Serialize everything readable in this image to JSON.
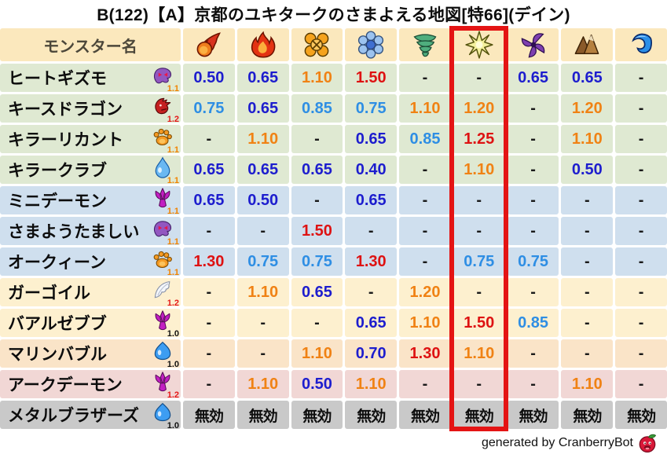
{
  "chart_data": {
    "type": "table",
    "title": "B(122)【A】京都のユキタークのさまよえる地図[特66](デイン)",
    "name_header": "モンスター名",
    "element_columns": [
      "fireball-icon",
      "flame-icon",
      "explosion-icon",
      "snowflake-icon",
      "tornado-icon",
      "spark-icon",
      "pinwheel-icon",
      "mountain-icon",
      "wave-icon"
    ],
    "highlighted_column_index": 5,
    "rows": [
      {
        "name": "ヒートギズモ",
        "icon": "ghost-icon",
        "multiplier": "1.1",
        "band": "green",
        "values": [
          "0.50",
          "0.65",
          "1.10",
          "1.50",
          "-",
          "-",
          "0.65",
          "0.65",
          "-"
        ]
      },
      {
        "name": "キースドラゴン",
        "icon": "dragon-icon",
        "multiplier": "1.2",
        "band": "green",
        "values": [
          "0.75",
          "0.65",
          "0.85",
          "0.75",
          "1.10",
          "1.20",
          "-",
          "1.20",
          "-"
        ]
      },
      {
        "name": "キラーリカント",
        "icon": "paw-icon",
        "multiplier": "1.1",
        "band": "green",
        "values": [
          "-",
          "1.10",
          "-",
          "0.65",
          "0.85",
          "1.25",
          "-",
          "1.10",
          "-"
        ]
      },
      {
        "name": "キラークラブ",
        "icon": "drop-icon",
        "multiplier": "1.1",
        "band": "green",
        "values": [
          "0.65",
          "0.65",
          "0.65",
          "0.40",
          "-",
          "1.10",
          "-",
          "0.50",
          "-"
        ]
      },
      {
        "name": "ミニデーモン",
        "icon": "trident-icon",
        "multiplier": "1.1",
        "band": "blue",
        "values": [
          "0.65",
          "0.50",
          "-",
          "0.65",
          "-",
          "-",
          "-",
          "-",
          "-"
        ]
      },
      {
        "name": "さまようたましい",
        "icon": "ghost-icon",
        "multiplier": "1.1",
        "band": "blue",
        "values": [
          "-",
          "-",
          "1.50",
          "-",
          "-",
          "-",
          "-",
          "-",
          "-"
        ]
      },
      {
        "name": "オークィーン",
        "icon": "paw-icon",
        "multiplier": "1.1",
        "band": "blue",
        "values": [
          "1.30",
          "0.75",
          "0.75",
          "1.30",
          "-",
          "0.75",
          "0.75",
          "-",
          "-"
        ]
      },
      {
        "name": "ガーゴイル",
        "icon": "wing-icon",
        "multiplier": "1.2",
        "band": "cream",
        "values": [
          "-",
          "1.10",
          "0.65",
          "-",
          "1.20",
          "-",
          "-",
          "-",
          "-"
        ]
      },
      {
        "name": "バアルゼブブ",
        "icon": "trident-icon",
        "multiplier": "1.0",
        "band": "cream",
        "values": [
          "-",
          "-",
          "-",
          "0.65",
          "1.10",
          "1.50",
          "0.85",
          "-",
          "-"
        ]
      },
      {
        "name": "マリンバブル",
        "icon": "slime-icon",
        "multiplier": "1.0",
        "band": "peach",
        "values": [
          "-",
          "-",
          "1.10",
          "0.70",
          "1.30",
          "1.10",
          "-",
          "-",
          "-"
        ]
      },
      {
        "name": "アークデーモン",
        "icon": "trident-icon",
        "multiplier": "1.2",
        "band": "pink",
        "values": [
          "-",
          "1.10",
          "0.50",
          "1.10",
          "-",
          "-",
          "-",
          "1.10",
          "-"
        ]
      },
      {
        "name": "メタルブラザーズ",
        "icon": "slime-icon",
        "multiplier": "1.0",
        "band": "gray",
        "values": [
          "無効",
          "無効",
          "無効",
          "無効",
          "無効",
          "無効",
          "無効",
          "無効",
          "無効"
        ]
      }
    ],
    "no_effect_label": "無効"
  },
  "footer": {
    "credit": "generated by CranberryBot",
    "bot_icon": "cranberry-icon"
  },
  "colors": {
    "highlight_box": "#e41414",
    "header_bg": "#fbe8bd",
    "band_green": "#dfe9d2",
    "band_blue": "#cfdfee",
    "band_cream": "#fdf0cf",
    "band_peach": "#fae4c8",
    "band_pink": "#f1d7d5",
    "band_gray": "#c9c9c9",
    "value_low": "#1d1dce",
    "value_mid_low": "#2e8ee4",
    "value_mid_high": "#f08214",
    "value_high": "#de1212"
  },
  "multiplier_colors": {
    "1.0": "#111111",
    "1.1": "#f08300",
    "1.2": "#e51919"
  }
}
